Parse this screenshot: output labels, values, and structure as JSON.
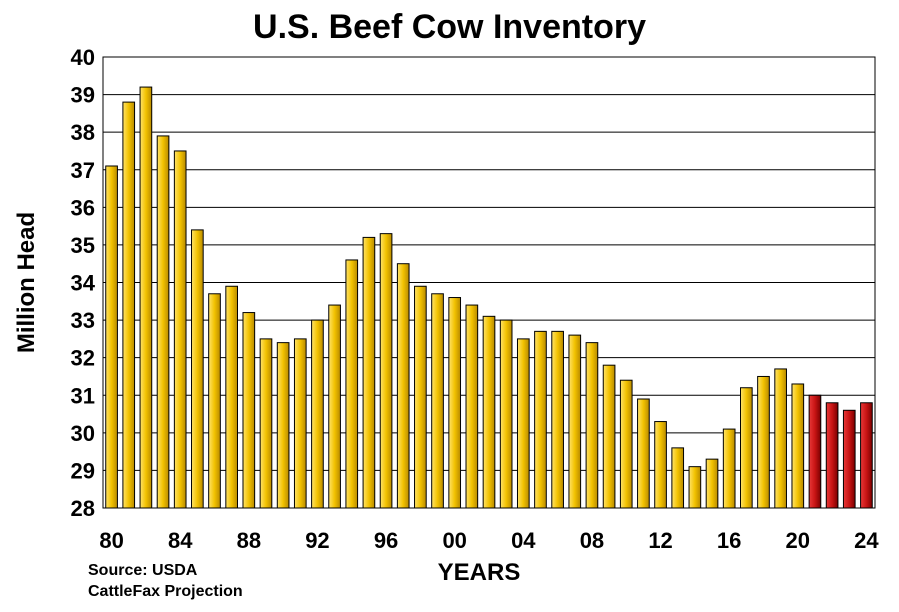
{
  "chart_data": {
    "type": "bar",
    "title": "U.S. Beef Cow Inventory",
    "xlabel": "YEARS",
    "ylabel": "Million Head",
    "ylim": [
      28,
      40
    ],
    "yticks": [
      "28",
      "29",
      "30",
      "31",
      "32",
      "33",
      "34",
      "35",
      "36",
      "37",
      "38",
      "39",
      "40"
    ],
    "xticks": [
      "80",
      "84",
      "88",
      "92",
      "96",
      "00",
      "04",
      "08",
      "12",
      "16",
      "20",
      "24"
    ],
    "grid": true,
    "categories": [
      "80",
      "81",
      "82",
      "83",
      "84",
      "85",
      "86",
      "87",
      "88",
      "89",
      "90",
      "91",
      "92",
      "93",
      "94",
      "95",
      "96",
      "97",
      "98",
      "99",
      "00",
      "01",
      "02",
      "03",
      "04",
      "05",
      "06",
      "07",
      "08",
      "09",
      "10",
      "11",
      "12",
      "13",
      "14",
      "15",
      "16",
      "17",
      "18",
      "19",
      "20",
      "21",
      "22",
      "23",
      "24"
    ],
    "series": [
      {
        "values": [
          37.1,
          38.8,
          39.2,
          37.9,
          37.5,
          35.4,
          33.7,
          33.9,
          33.2,
          32.5,
          32.4,
          32.5,
          33.0,
          33.4,
          34.6,
          35.2,
          35.3,
          34.5,
          33.9,
          33.7,
          33.6,
          33.4,
          33.1,
          33.0,
          32.5,
          32.7,
          32.7,
          32.6,
          32.4,
          31.8,
          31.4,
          30.9,
          30.3,
          29.6,
          29.1,
          29.3,
          30.1,
          31.2,
          31.5,
          31.7,
          31.3,
          31.0,
          30.8,
          30.6,
          30.8
        ],
        "projected_from_index": 41
      }
    ],
    "colors": {
      "actual": "#F2C200",
      "projection": "#C81414",
      "outline": "#000000"
    },
    "notes": [
      "Source: USDA",
      "CattleFax Projection"
    ]
  }
}
